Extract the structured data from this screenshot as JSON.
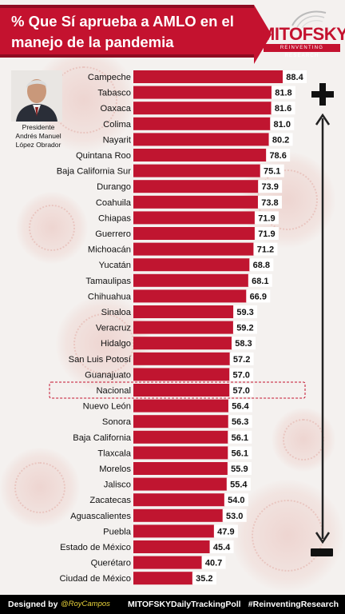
{
  "title": {
    "line1": "% Que Sí aprueba a AMLO en el",
    "line2": "manejo de la pandemia"
  },
  "brand": {
    "name": "MITOFSKY",
    "tagline": "REINVENTING RESEARCH",
    "color": "#c4122f"
  },
  "president": {
    "caption_line1": "Presidente",
    "caption_line2": "Andrés Manuel",
    "caption_line3": "López Obrador"
  },
  "scale": {
    "top_icon": "plus-icon",
    "bottom_icon": "minus-icon"
  },
  "footer": {
    "designed_by": "Designed by",
    "author": "@RoyCampos",
    "poll": "MITOFSKYDailyTrackingPoll",
    "hashtag": "#ReinventingResearch"
  },
  "chart_data": {
    "type": "bar",
    "orientation": "horizontal",
    "title": "% Que Sí aprueba a AMLO en el manejo de la pandemia",
    "bar_color": "#c01530",
    "highlight_category": "Nacional",
    "highlight_color": "#c4122f",
    "categories": [
      "Campeche",
      "Tabasco",
      "Oaxaca",
      "Colima",
      "Nayarit",
      "Quintana Roo",
      "Baja California Sur",
      "Durango",
      "Coahuila",
      "Chiapas",
      "Guerrero",
      "Michoacán",
      "Yucatán",
      "Tamaulipas",
      "Chihuahua",
      "Sinaloa",
      "Veracruz",
      "Hidalgo",
      "San Luis Potosí",
      "Guanajuato",
      "Nacional",
      "Nuevo León",
      "Sonora",
      "Baja California",
      "Tlaxcala",
      "Morelos",
      "Jalisco",
      "Zacatecas",
      "Aguascalientes",
      "Puebla",
      "Estado de México",
      "Querétaro",
      "Ciudad de México"
    ],
    "values": [
      88.4,
      81.8,
      81.6,
      81.0,
      80.2,
      78.6,
      75.1,
      73.9,
      73.8,
      71.9,
      71.9,
      71.2,
      68.8,
      68.1,
      66.9,
      59.3,
      59.2,
      58.3,
      57.2,
      57.0,
      57.0,
      56.4,
      56.3,
      56.1,
      56.1,
      55.9,
      55.4,
      54.0,
      53.0,
      47.9,
      45.4,
      40.7,
      35.2
    ],
    "value_labels": [
      "88.4",
      "81.8",
      "81.6",
      "81.0",
      "80.2",
      "78.6",
      "75.1",
      "73.9",
      "73.8",
      "71.9",
      "71.9",
      "71.2",
      "68.8",
      "68.1",
      "66.9",
      "59.3",
      "59.2",
      "58.3",
      "57.2",
      "57.0",
      "57.0",
      "56.4",
      "56.3",
      "56.1",
      "56.1",
      "55.9",
      "55.4",
      "54.0",
      "53.0",
      "47.9",
      "45.4",
      "40.7",
      "35.2"
    ],
    "xlim": [
      0,
      100
    ],
    "grid": false,
    "legend": "none"
  }
}
